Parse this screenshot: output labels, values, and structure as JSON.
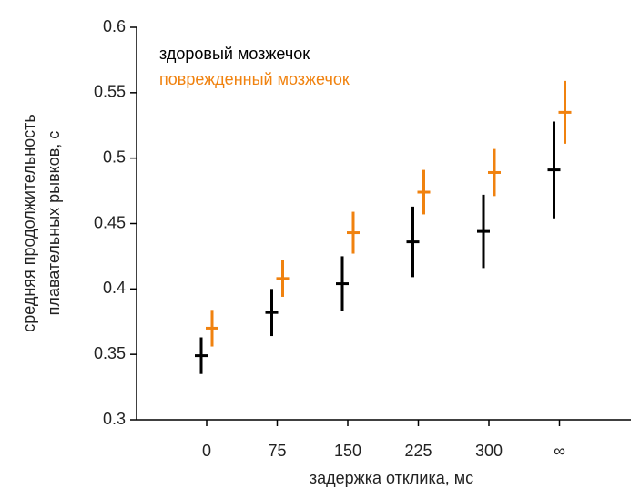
{
  "chart_data": {
    "type": "errorbar",
    "ylabel": [
      "средняя продолжительность",
      "плавательных рывков, с"
    ],
    "xlabel": "задержка отклика, мс",
    "categories": [
      "0",
      "75",
      "150",
      "225",
      "300",
      "∞"
    ],
    "ylim": [
      0.3,
      0.6
    ],
    "yticks": [
      0.3,
      0.35,
      0.4,
      0.45,
      0.5,
      0.55,
      0.6
    ],
    "series": [
      {
        "name": "здоровый мозжечок",
        "color": "#000000",
        "values": [
          0.349,
          0.382,
          0.404,
          0.436,
          0.444,
          0.491
        ],
        "errors": [
          0.014,
          0.018,
          0.021,
          0.027,
          0.028,
          0.037
        ]
      },
      {
        "name": "поврежденный мозжечок",
        "color": "#f0820f",
        "values": [
          0.37,
          0.408,
          0.443,
          0.474,
          0.489,
          0.535
        ],
        "errors": [
          0.014,
          0.014,
          0.016,
          0.017,
          0.018,
          0.024
        ]
      }
    ]
  }
}
